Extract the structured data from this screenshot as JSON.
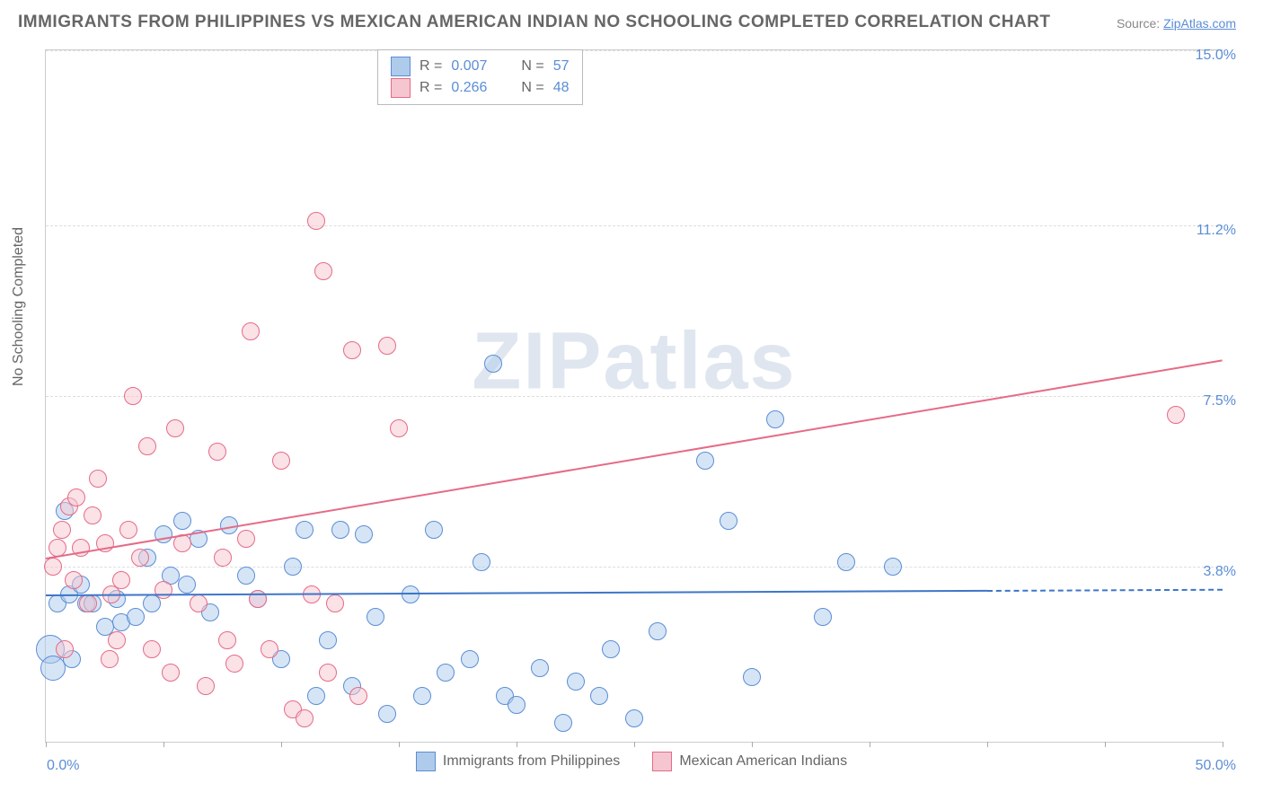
{
  "title": "IMMIGRANTS FROM PHILIPPINES VS MEXICAN AMERICAN INDIAN NO SCHOOLING COMPLETED CORRELATION CHART",
  "source_label": "Source:",
  "source_name": "ZipAtlas.com",
  "ylabel": "No Schooling Completed",
  "watermark": "ZIPatlas",
  "chart": {
    "type": "scatter",
    "xlim": [
      0,
      50
    ],
    "ylim": [
      0,
      15
    ],
    "xtick_min_label": "0.0%",
    "xtick_max_label": "50.0%",
    "ytick_labels": [
      "3.8%",
      "7.5%",
      "11.2%",
      "15.0%"
    ],
    "ytick_values": [
      3.8,
      7.5,
      11.2,
      15.0
    ],
    "xtick_marks": [
      0,
      5,
      10,
      15,
      20,
      25,
      30,
      35,
      40,
      45,
      50
    ],
    "grid_color": "#dddddd",
    "background_color": "#ffffff",
    "marker_radius": 9,
    "marker_radius_large": 15,
    "marker_border_width": 1.5,
    "title_fontsize": 19,
    "label_fontsize": 16,
    "tick_color": "#5b8dd6",
    "text_color": "#666666"
  },
  "series": [
    {
      "key": "philippines",
      "label": "Immigrants from Philippines",
      "fill": "#aecbeb",
      "stroke": "#5b8dd6",
      "R": "0.007",
      "N": "57",
      "trend": {
        "x1": 0,
        "y1": 3.2,
        "x2": 40,
        "y2": 3.3,
        "dash_to_x": 50,
        "color": "#3d76c8"
      },
      "points": [
        {
          "x": 0.2,
          "y": 2.0,
          "r": 15
        },
        {
          "x": 0.3,
          "y": 1.6,
          "r": 13
        },
        {
          "x": 0.5,
          "y": 3.0
        },
        {
          "x": 0.8,
          "y": 5.0
        },
        {
          "x": 1.0,
          "y": 3.2
        },
        {
          "x": 1.1,
          "y": 1.8
        },
        {
          "x": 1.5,
          "y": 3.4
        },
        {
          "x": 1.7,
          "y": 3.0
        },
        {
          "x": 2.0,
          "y": 3.0
        },
        {
          "x": 2.5,
          "y": 2.5
        },
        {
          "x": 3.0,
          "y": 3.1
        },
        {
          "x": 3.2,
          "y": 2.6
        },
        {
          "x": 3.8,
          "y": 2.7
        },
        {
          "x": 4.3,
          "y": 4.0
        },
        {
          "x": 4.5,
          "y": 3.0
        },
        {
          "x": 5.0,
          "y": 4.5
        },
        {
          "x": 5.3,
          "y": 3.6
        },
        {
          "x": 5.8,
          "y": 4.8
        },
        {
          "x": 6.0,
          "y": 3.4
        },
        {
          "x": 6.5,
          "y": 4.4
        },
        {
          "x": 7.0,
          "y": 2.8
        },
        {
          "x": 7.8,
          "y": 4.7
        },
        {
          "x": 8.5,
          "y": 3.6
        },
        {
          "x": 9.0,
          "y": 3.1
        },
        {
          "x": 10.0,
          "y": 1.8
        },
        {
          "x": 10.5,
          "y": 3.8
        },
        {
          "x": 11.0,
          "y": 4.6
        },
        {
          "x": 11.5,
          "y": 1.0
        },
        {
          "x": 12.0,
          "y": 2.2
        },
        {
          "x": 12.5,
          "y": 4.6
        },
        {
          "x": 13.0,
          "y": 1.2
        },
        {
          "x": 13.5,
          "y": 4.5
        },
        {
          "x": 14.0,
          "y": 2.7
        },
        {
          "x": 14.5,
          "y": 0.6
        },
        {
          "x": 15.5,
          "y": 3.2
        },
        {
          "x": 16.0,
          "y": 1.0
        },
        {
          "x": 16.5,
          "y": 4.6
        },
        {
          "x": 17.0,
          "y": 1.5
        },
        {
          "x": 18.0,
          "y": 1.8
        },
        {
          "x": 18.5,
          "y": 3.9
        },
        {
          "x": 19.0,
          "y": 8.2
        },
        {
          "x": 19.5,
          "y": 1.0
        },
        {
          "x": 20.0,
          "y": 0.8
        },
        {
          "x": 21.0,
          "y": 1.6
        },
        {
          "x": 22.0,
          "y": 0.4
        },
        {
          "x": 22.5,
          "y": 1.3
        },
        {
          "x": 23.5,
          "y": 1.0
        },
        {
          "x": 24.0,
          "y": 2.0
        },
        {
          "x": 25.0,
          "y": 0.5
        },
        {
          "x": 26.0,
          "y": 2.4
        },
        {
          "x": 28.0,
          "y": 6.1
        },
        {
          "x": 29.0,
          "y": 4.8
        },
        {
          "x": 30.0,
          "y": 1.4
        },
        {
          "x": 31.0,
          "y": 7.0
        },
        {
          "x": 33.0,
          "y": 2.7
        },
        {
          "x": 34.0,
          "y": 3.9
        },
        {
          "x": 36.0,
          "y": 3.8
        }
      ]
    },
    {
      "key": "mexican",
      "label": "Mexican American Indians",
      "fill": "#f6c6d0",
      "stroke": "#e56b87",
      "R": "0.266",
      "N": "48",
      "trend": {
        "x1": 0,
        "y1": 4.0,
        "x2": 50,
        "y2": 8.3,
        "color": "#e56b87"
      },
      "points": [
        {
          "x": 0.3,
          "y": 3.8
        },
        {
          "x": 0.5,
          "y": 4.2
        },
        {
          "x": 0.7,
          "y": 4.6
        },
        {
          "x": 0.8,
          "y": 2.0
        },
        {
          "x": 1.0,
          "y": 5.1
        },
        {
          "x": 1.2,
          "y": 3.5
        },
        {
          "x": 1.3,
          "y": 5.3
        },
        {
          "x": 1.5,
          "y": 4.2
        },
        {
          "x": 1.8,
          "y": 3.0
        },
        {
          "x": 2.0,
          "y": 4.9
        },
        {
          "x": 2.2,
          "y": 5.7
        },
        {
          "x": 2.5,
          "y": 4.3
        },
        {
          "x": 2.7,
          "y": 1.8
        },
        {
          "x": 2.8,
          "y": 3.2
        },
        {
          "x": 3.0,
          "y": 2.2
        },
        {
          "x": 3.2,
          "y": 3.5
        },
        {
          "x": 3.5,
          "y": 4.6
        },
        {
          "x": 3.7,
          "y": 7.5
        },
        {
          "x": 4.0,
          "y": 4.0
        },
        {
          "x": 4.3,
          "y": 6.4
        },
        {
          "x": 4.5,
          "y": 2.0
        },
        {
          "x": 5.0,
          "y": 3.3
        },
        {
          "x": 5.3,
          "y": 1.5
        },
        {
          "x": 5.5,
          "y": 6.8
        },
        {
          "x": 5.8,
          "y": 4.3
        },
        {
          "x": 6.5,
          "y": 3.0
        },
        {
          "x": 6.8,
          "y": 1.2
        },
        {
          "x": 7.3,
          "y": 6.3
        },
        {
          "x": 7.5,
          "y": 4.0
        },
        {
          "x": 7.7,
          "y": 2.2
        },
        {
          "x": 8.0,
          "y": 1.7
        },
        {
          "x": 8.5,
          "y": 4.4
        },
        {
          "x": 8.7,
          "y": 8.9
        },
        {
          "x": 9.0,
          "y": 3.1
        },
        {
          "x": 9.5,
          "y": 2.0
        },
        {
          "x": 10.0,
          "y": 6.1
        },
        {
          "x": 10.5,
          "y": 0.7
        },
        {
          "x": 11.0,
          "y": 0.5
        },
        {
          "x": 11.3,
          "y": 3.2
        },
        {
          "x": 11.5,
          "y": 11.3
        },
        {
          "x": 11.8,
          "y": 10.2
        },
        {
          "x": 12.0,
          "y": 1.5
        },
        {
          "x": 12.3,
          "y": 3.0
        },
        {
          "x": 13.0,
          "y": 8.5
        },
        {
          "x": 13.3,
          "y": 1.0
        },
        {
          "x": 14.5,
          "y": 8.6
        },
        {
          "x": 15.0,
          "y": 6.8
        },
        {
          "x": 48.0,
          "y": 7.1
        }
      ]
    }
  ],
  "legend": {
    "R_label": "R =",
    "N_label": "N ="
  }
}
